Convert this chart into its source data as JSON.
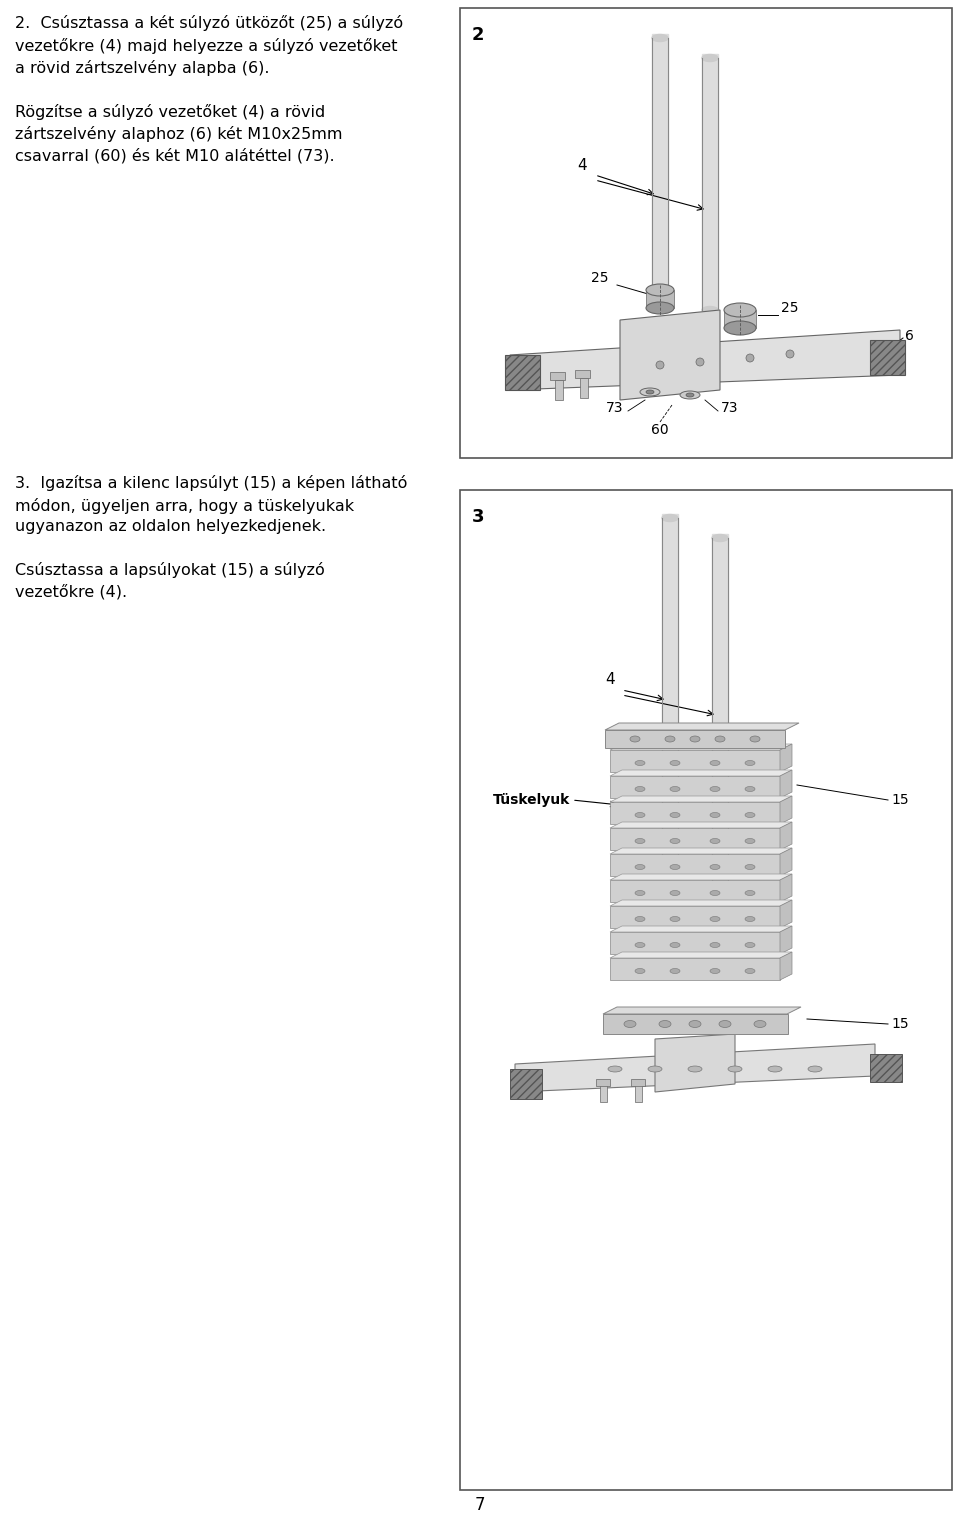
{
  "page_number": "7",
  "bg_color": "#ffffff",
  "text_color": "#000000",
  "panel2_label": "2",
  "panel3_label": "3",
  "step2_text1": "2.  Csúsztassa a két súlyzó ütközőt (25) a súlyzó\nvezetőkre (4) majd helyezze a súlyzó vezetőket\na rövid zártszelvény alapba (6).",
  "step2_text2": "Rögzítse a súlyzó vezetőket (4) a rövid\nzártszelvény alaphoz (6) két M10x25mm\ncsavarral (60) és két M10 alátéttel (73).",
  "step3_text1": "3.  Igazítsa a kilenc lapsúlyt (15) a képen látható\nmódon, ügyeljen arra, hogy a tüskelyukak\nugyanazón az oldalón helyezkedjenek.",
  "step3_text2": "Csúsztassa a lapsúlyokat (15) a súlyzó\nvezetőkre (4).",
  "line_color": "#888888",
  "diagram_border_color": "#555555"
}
